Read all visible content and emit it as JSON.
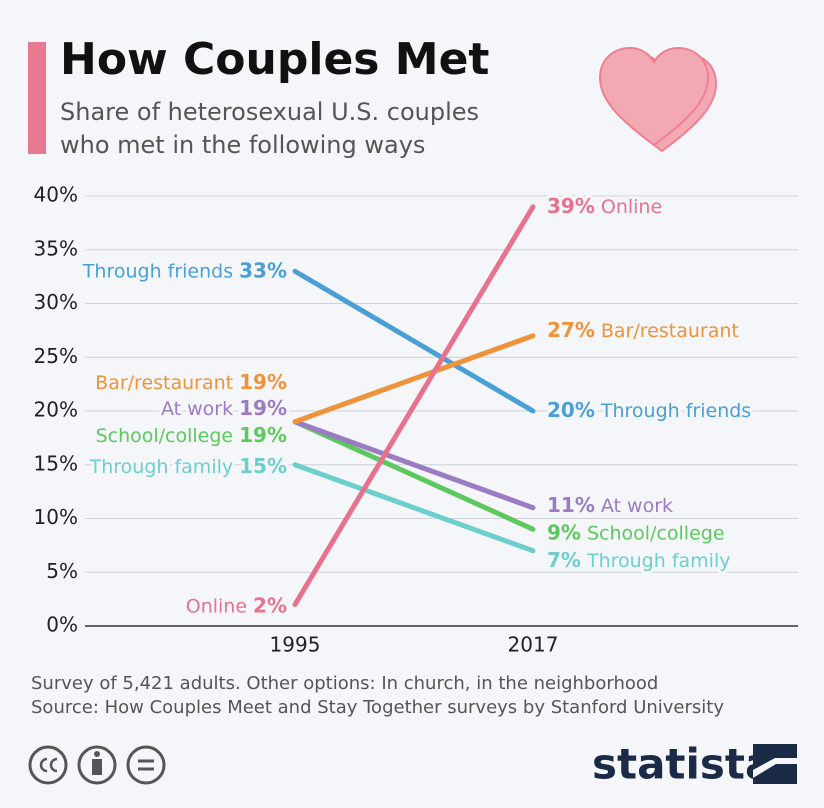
{
  "header": {
    "title": "How Couples Met",
    "subtitle": [
      "Share of heterosexual U.S. couples",
      "who met in the following ways"
    ]
  },
  "chart_data": {
    "type": "line",
    "categories": [
      "1995",
      "2017"
    ],
    "ylim": [
      0,
      40
    ],
    "yticks": [
      {
        "value": 0,
        "label": "0%"
      },
      {
        "value": 5,
        "label": "5%"
      },
      {
        "value": 10,
        "label": "10%"
      },
      {
        "value": 15,
        "label": "15%"
      },
      {
        "value": 20,
        "label": "20%"
      },
      {
        "value": 25,
        "label": "25%"
      },
      {
        "value": 30,
        "label": "30%"
      },
      {
        "value": 35,
        "label": "35%"
      },
      {
        "value": 40,
        "label": "40%"
      }
    ],
    "grid": true,
    "series": [
      {
        "name": "Through friends",
        "color": "#4a9fd6",
        "values": [
          33,
          20
        ],
        "value_labels": [
          "33%",
          "20%"
        ]
      },
      {
        "name": "Through family",
        "color": "#6dcfcd",
        "values": [
          15,
          7
        ],
        "value_labels": [
          "15%",
          "7%"
        ]
      },
      {
        "name": "School/college",
        "color": "#5cc95e",
        "values": [
          19,
          9
        ],
        "value_labels": [
          "19%",
          "9%"
        ]
      },
      {
        "name": "At work",
        "color": "#9a7bc4",
        "values": [
          19,
          11
        ],
        "value_labels": [
          "19%",
          "11%"
        ]
      },
      {
        "name": "Bar/restaurant",
        "color": "#f0923a",
        "values": [
          19,
          27
        ],
        "value_labels": [
          "19%",
          "27%"
        ]
      },
      {
        "name": "Online",
        "color": "#e8718e",
        "values": [
          2,
          39
        ],
        "value_labels": [
          "2%",
          "39%"
        ]
      }
    ]
  },
  "footer": {
    "notes": [
      "Survey of 5,421 adults. Other options: In church, in the neighborhood",
      "Source: How Couples Meet and Stay Together surveys by Stanford University"
    ],
    "logo": "statista"
  }
}
